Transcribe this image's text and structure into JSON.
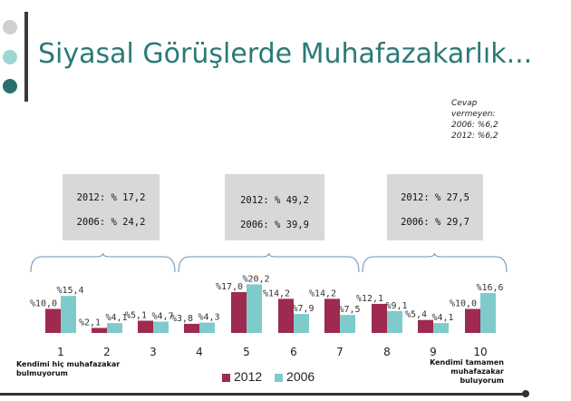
{
  "header": {
    "title": "Siyasal Görüşlerde Muhafazakarlık..."
  },
  "note": {
    "line1": "Cevap",
    "line2": "vermeyen:",
    "line3": "2006: %6,2",
    "line4": "2012:  %6,2"
  },
  "groups": [
    {
      "line2012": "2012: % 17,2",
      "line2006": "2006: % 24,2"
    },
    {
      "line2012": "2012: % 49,2",
      "line2006": "2006: % 39,9"
    },
    {
      "line2012": "2012: % 27,5",
      "line2006": "2006: % 29,7"
    }
  ],
  "footer": {
    "left_line1": "Kendimi hiç muhafazakar",
    "left_line2": "bulmuyorum",
    "right_line1": "Kendimi tamamen",
    "right_line2": "muhafazakar",
    "right_line3": "buluyorum"
  },
  "colors": {
    "series2012": "#9e2a4f",
    "series2006": "#7fcbcb",
    "title": "#2a7a78",
    "bracket": "#6a8fb8"
  },
  "chart_data": {
    "type": "bar",
    "categories": [
      "1",
      "2",
      "3",
      "4",
      "5",
      "6",
      "7",
      "8",
      "9",
      "10"
    ],
    "series": [
      {
        "name": "2012",
        "values": [
          10.0,
          2.1,
          5.1,
          3.8,
          17.0,
          14.2,
          14.2,
          12.1,
          5.4,
          10.0
        ],
        "labels": [
          "%10,0",
          "%2,1",
          "%5,1",
          "%3,8",
          "%17,0",
          "%14,2",
          "%14,2",
          "%12,1",
          "%5,4",
          "%10,0"
        ]
      },
      {
        "name": "2006",
        "values": [
          15.4,
          4.1,
          4.7,
          4.3,
          20.2,
          7.9,
          7.5,
          9.1,
          4.1,
          16.6
        ],
        "labels": [
          "%15,4",
          "%4,1",
          "%4,7",
          "%4,3",
          "%20,2",
          "%7,9",
          "%7,5",
          "%9,1",
          "%4,1",
          "%16,6"
        ]
      }
    ],
    "legend": [
      "2012",
      "2006"
    ],
    "legend_position": "bottom",
    "grid": false
  }
}
